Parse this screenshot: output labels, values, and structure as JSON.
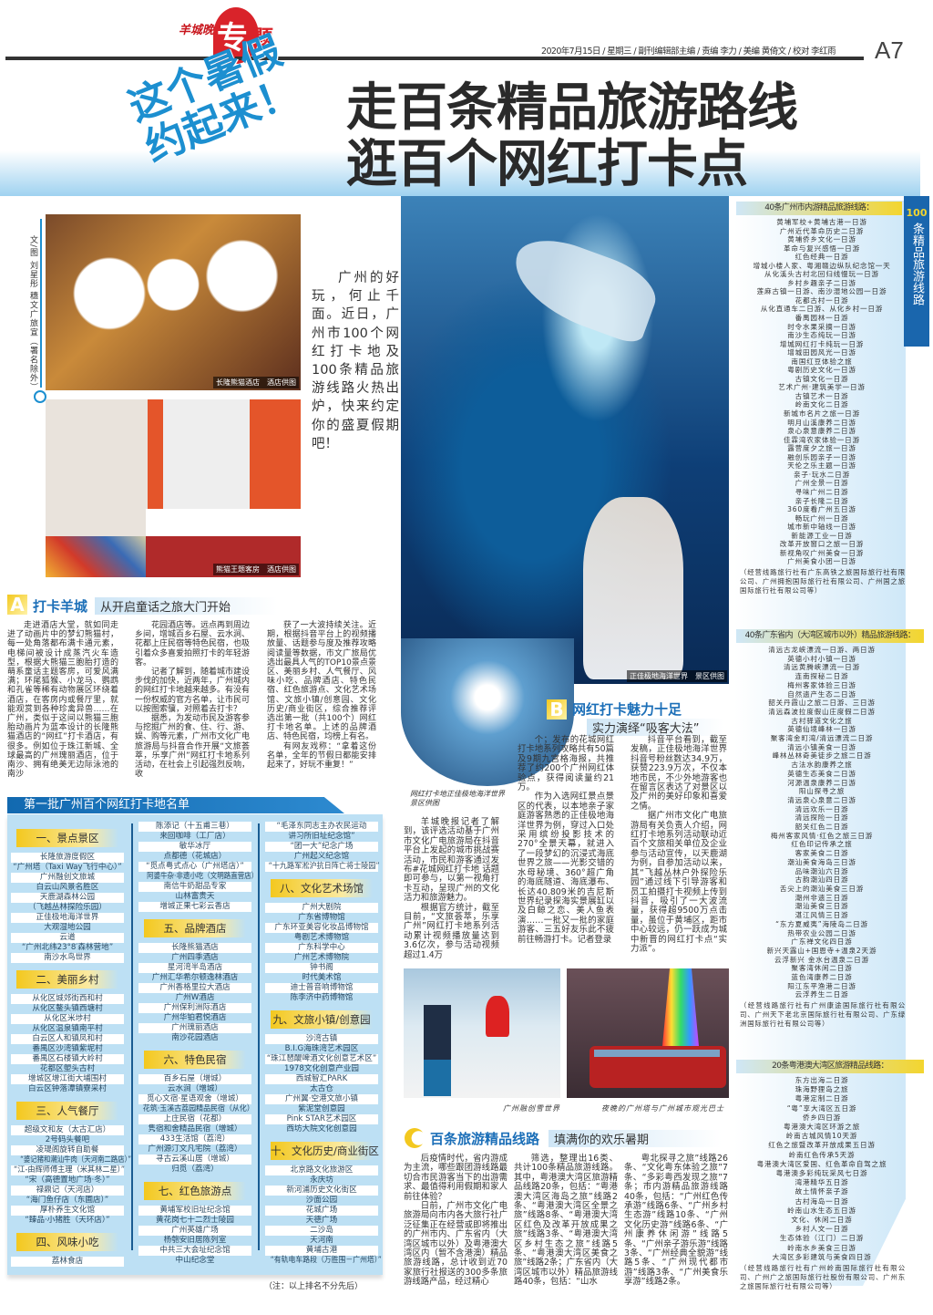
{
  "masthead": {
    "logo": "羊城晚报",
    "section_1": "专",
    "section_2": "题",
    "dateline": "2020年7月15日 / 星期三 / 副刊编辑部主编 / 责编 李力 / 美编 黄倚文 / 校对 李红雨",
    "page": "A7"
  },
  "headline": {
    "slogan": "这个暑假约起来！",
    "title_line1": "走百条精品旅游路线",
    "title_line2": "逛百个网红打卡点"
  },
  "byline": "文/图 刘星彤 穗文广旅宣（署名除外）",
  "intro": "广州的好玩，何止千面。近日，广州市100个网红打卡地及100条精品旅游线路火热出炉，快来约定你的盛夏假期吧！",
  "photos": {
    "panda_caption": "长隆熊猫酒店　酒店供图",
    "room_caption": "熊猫王题客房　酒店供图",
    "aquarium_caption": "正佳极地海洋世界　景区供图",
    "circle_caption": "网红打卡地正佳极地海洋世界　景区供图",
    "snow_caption": "广州融创雪世界",
    "bus_caption": "夜晚的广州塔与广州城市观光巴士"
  },
  "section_a": {
    "letter": "A",
    "title": "打卡羊城",
    "subtitle": "从开启童话之旅大门开始",
    "columns": [
      [
        "走进酒店大堂，就如同走进了动画片中的梦幻熊猫村，每一处角落都布满卡通元素，电梯间被设计成蒸汽火车造型，根据大熊猫三胞胎打造的萌系童话主题客房，可爱风满满；环尾狐猴、小龙马、鹦鹉和孔雀等稀有动物展区环绕着酒店，在客房内或餐厅里，就能观赏到各种珍禽异兽……在广州，类似于这间以熊猫三胞胎动画片为蓝本设计的长隆熊猫酒店的“网红”打卡酒店，有很多。例如位于珠江新城、全球最高的广州瑰丽酒店，位于南沙、拥有绝美无边际泳池的南沙"
      ],
      [
        "花园酒店等。远点再到周边乡间，增城百乡石屋、云水涧、花都上庄民宿等特色民宿，也吸引着众多喜爱拍照打卡的年轻游客。",
        "记者了解到，随着城市建设步伐的加快，近两年，广州城内的网红打卡地越来越多。有没有一份权威的官方名单，让市民可以按图索骥，对照着去打卡？",
        "据悉，为发动市民及游客参与挖掘广州的食、住、行、游、娱、购等元素，广州市文化广电旅游局与抖音合作开展“文旅荟萃，乐享广州”网红打卡地系列活动，在社会上引起强烈反响，收"
      ],
      [
        "获了一大波持续关注。近期，根据抖音平台上的视频播放量、话题参与度及推荐攻略阅读量等数据，市文广旅局优选出最具人气的TOP10景点景区、美丽乡村、人气餐厅、风味小吃、品牌酒店、特色民宿、红色旅游点、文化艺术场馆、文旅小镇/创意园、文化历史/商业街区，综合推荐评选出第一批（共100个）网红打卡地名单。上述的品牌酒店、特色民宿，均榜上有名。",
        "有网友戏称：“拿着这份名单，全年的节假日都能安排起来了，好玩不重复！”"
      ]
    ]
  },
  "section_b": {
    "letter": "B",
    "title": "网红打卡魅力十足",
    "subtitle": "实力演绎“吸客大法”",
    "columns": [
      [
        "羊城晚报记者了解到，该评选活动基于广州市文化广电旅游局在抖音平台上发起的城市挑战赛活动，市民和游客通过发布#花城网红打卡地 话题即可参与，以第一视角打卡互动，呈现广州的文化活力和旅游魅力。",
        "根据官方统计，截至目前，“文旅荟萃，乐享广州”网红打卡地系列活动累计视频播放量达到3.6亿次，参与活动视频超过1.4万"
      ],
      [
        "个；发布的花城网红打卡地系列攻略共有50篇及9期九宫格海报，共推荐了约200个广州网红体验点，获得阅读量约21万。",
        "作为入选网红景点景区的代表，以本地亲子家庭游客熟悉的正佳极地海洋世界为例，穿过入口处采用缤纷投影技术的270°全景天幕，就进入了一段梦幻的沉浸式海底世界之旅——光影交错的水母秘境、360°超广角的海底隧道、海底瀑布、长达40.809米的吉尼斯世界纪录探海实景展缸以及白鲸之恋、美人鱼表演……一批又一批的家庭游客、三五好友乐此不疲前往畅游打卡。记者登录"
      ],
      [
        "抖音平台看到，截至发稿，正佳极地海洋世界抖音号粉丝数达34.9万，获赞223.9万次，不仅本地市民，不少外地游客也在留言区表达了对景区以及广州的美好印象和喜爱之情。",
        "据广州市文化广电旅游局有关负责人介绍，网红打卡地系列活动联动近百个文旅相关单位及企业参与活动宣传，以天鹿湖为例，自参加活动以来，其“飞越丛林户外探险乐园”通过线下引导游客和员工拍摄打卡视频上传到抖音，吸引了一大波流量，获得超9500万点击量，虽位于黄埔区，距市中心较远，仍一跃成为城中新晋的网红打卡点“实力派”。"
      ]
    ]
  },
  "section_c": {
    "letter": "C",
    "title": "百条旅游精品线路",
    "subtitle": "填满你的欢乐暑期",
    "columns": [
      [
        "后疫情时代，省内游成为主流，哪些跟团游线路最切合市民游客当下的出游需求、最值得利用假期和家人前往体验？",
        "日前，广州市文化广电旅游局向市内各大旅行社广泛征集正在经营或即将推出的广州市内、广东省内（大湾区城市以外）及粤港澳大湾区内（暂不含港澳）精品旅游线路，总计收到近70家旅行社报送的300多条旅游线路产品，经过精心"
      ],
      [
        "筛选，整理出16类、共计100条精品旅游线路。其中，粤港澳大湾区旅游精品线路20条，包括：“粤港澳大湾区海岛之旅”线路2条、“粤港澳大湾区全景之旅”线路8条、“粤港澳大湾区红色及改革开放成果之旅”线路3条、“粤港澳大湾区乡村生态之旅”线路5条、“粤港澳大湾区美食之旅”线路2条；广东省内（大湾区城市以外）精品旅游线路40条，包括：“山水"
      ],
      [
        "粤北探寻之旅”线路26条、“文化粤东体验之旅”7条、“多彩粤西发现之旅”7条；市内游精品旅游线路40条，包括：“广州红色传承游”线路6条、“广州乡村生态游”线路10条、“广州文化历史游”线路6条、“广州康养休闲游”线路5条、“广州亲子游乐游”线路3条、“广州经典全貌游”线路5条、“广州现代都市游”线路3条、“广州美食乐享游”线路2条。"
      ]
    ]
  },
  "checkin_list": {
    "title": "第一批广州百个网红打卡地名单",
    "note": "（注：以上排名不分先后）",
    "columns": [
      [
        {
          "heading": "一、景点景区",
          "items": [
            "长隆旅游度假区",
            "“广州塔（Taxi Way飞行中心）”",
            "广州融创文旅城",
            "白云山风景名胜区",
            "天鹿湖森林公园",
            "（飞越丛林探险乐园）",
            "正佳极地海洋世界",
            "大观湿地公园",
            "云道",
            "“广州北纬23°8′森林营地”",
            "南沙水鸟世界"
          ]
        },
        {
          "heading": "二、美丽乡村",
          "items": [
            "从化区城郊街西和村",
            "从化区鳌头镇西塘村",
            "从化区米埗村",
            "从化区温泉镇南平村",
            "白云区人和镇凤和村",
            "番禺区沙湾镇紫坭村",
            "番禺区石楼镇大岭村",
            "花都区塱头古村",
            "增城区增江街大埔围村",
            "白云区钟落潭镇寮采村"
          ]
        },
        {
          "heading": "三、人气餐厅",
          "items": [
            "超级文和友（太古汇店）",
            "2号码头餐吧",
            "凌瑅阁旋转自助餐",
            "“婆记猪和潮汕牛肉（天河南二路店）”",
            "“江-由辉师傅主理（米其林二星）”",
            "“宋（高德置地广场·冬）”",
            "禄鼎记（天河店）",
            "“海门鱼仔店（东圃店）”",
            "厚朴养生文化馆",
            "“臻品·小猪胜（天环店）”"
          ]
        },
        {
          "heading": "四、风味小吃",
          "items": [
            "荔林食店"
          ]
        }
      ],
      [
        {
          "heading": "",
          "items": [
            "陈添记（十五甫三巷）",
            "来回咖啡（工厂店）",
            "敏华冰厅",
            "点都德（花城店）",
            "“觅点粤式点心（广州塔店）”",
            "阿婆牛杂·非遗小吃（文明路直营店）",
            "南信牛奶甜品专家",
            "山林富贵天",
            "增城正果七彩云香店"
          ]
        },
        {
          "heading": "五、品牌酒店",
          "items": [
            "长隆熊猫酒店",
            "广州四季酒店",
            "星河湾半岛酒店",
            "广州汇华希尔顿逸林酒店",
            "广州香格里拉大酒店",
            "广州W酒店",
            "广州保利洲际酒店",
            "广州华铂君悦酒店",
            "广州瑰丽酒店",
            "南沙花园酒店"
          ]
        },
        {
          "heading": "六、特色民宿",
          "items": [
            "百乡石屋（增城）",
            "云水涧（增城）",
            "觅心文宿·星语观舍（增城）",
            "花筑·玉溪古荔园精品民宿（从化）",
            "上庄民宿（花都）",
            "隽宿和舍精品民宿（增城）",
            "433生活馆（荔湾）",
            "广州源汀文凡宅院（荔湾）",
            "寻古云溪山居（增城）",
            "归觅（荔湾）"
          ]
        },
        {
          "heading": "七、红色旅游点",
          "items": [
            "黄埔军校旧址纪念馆",
            "黄花岗七十二烈士陵园",
            "广州英雄广场",
            "杨匏安旧居陈列室",
            "中共三大会址纪念馆",
            "中山纪念堂"
          ]
        }
      ],
      [
        {
          "heading": "",
          "items": [
            "“毛泽东同志主办农民运动",
            "讲习所旧址纪念馆”",
            "“团一大”纪念广场",
            "广州起义纪念馆",
            "“十九路军淞沪抗日阵亡将士陵园”"
          ]
        },
        {
          "heading": "八、文化艺术场馆",
          "items": [
            "广州大剧院",
            "广东省博物馆",
            "广东环亚美容化妆品博物馆",
            "粤剧艺术博物馆",
            "广东科学中心",
            "广州艺术博物院",
            "钟书阁",
            "时代美术馆",
            "迪士普音响博物馆",
            "陈李济中药博物馆"
          ]
        },
        {
          "heading": "九、文旅小镇/创意园",
          "items": [
            "沙湾古镇",
            "B.I.G海珠湾艺术园区",
            "“珠江琶醍啤酒文化创意艺术区”",
            "1978文化创意产业园",
            "西城智汇PARK",
            "太古仓",
            "广州翼·空港文旅小镇",
            "紫泥堂创意园",
            "Pink STAR艺术园区",
            "西坊大院文化创意园"
          ]
        },
        {
          "heading": "十、文化历史/商业街区",
          "items": [
            "北京路文化旅游区",
            "永庆坊",
            "新河浦历史文化街区",
            "沙面公园",
            "花城广场",
            "天德广场",
            "二沙岛",
            "天河南",
            "黄埔古港",
            "“有轨电车路段（万胜围－广州塔）”"
          ]
        }
      ]
    ]
  },
  "routes": {
    "tab_number": "100",
    "tab_label": "条精品旅游线路",
    "groups": [
      {
        "heading": "40条广州市内游精品旅游线路：",
        "items": [
          "黄埔军校+黄埔古港一日游",
          "广州近代革命历史二日游",
          "黄埔侨乡文化一日游",
          "革命与复兴感悟一日游",
          "红色经典一日游",
          "增城小楼人家、粤湘赣边纵队纪念馆一天",
          "从化溪头古村北回归线慢玩一日游",
          "乡村乡趣亲子二日游",
          "莲麻古镇一日游、南沙湿地公园一日游",
          "花都古村一日游",
          "从化直通车二日游、从化乡村一日游",
          "番禺园林一日游",
          "时令水果采摘一日游",
          "南沙生态纯玩一日游",
          "增城网红打卡纯玩一日游",
          "增城田园风光一日游",
          "南国红豆体验之旅",
          "粤剧历史文化一日游",
          "古镇文化一日游",
          "艺术广州·建筑美学一日游",
          "古镇艺术一日游",
          "岭南文化二日游",
          "新城市名片之旅一日游",
          "明月山溪康养二日游",
          "泉心泉意康养二日游",
          "佳霖湾农家体验一日游",
          "露营度夕之旅一日游",
          "融创乐园亲子一日游",
          "天伦之乐主题一日游",
          "亲子·玩水二日游",
          "广州全景一日游",
          "寻味广州二日游",
          "亲子长隆二日游",
          "360度看广州五日游",
          "畅玩广州一日游",
          "城市新中轴线一日游",
          "新能源工业一日游",
          "改革开放窗口之旅一日游",
          "新视角叹广州美食一日游",
          "广州美食小团一日游"
        ],
        "note": "（经营线路旅行社有广东高铁之旅国际旅行社有限公司、广州拥抱国际旅行社有限公司、广州国之旅国际旅行社有限公司等）"
      },
      {
        "heading": "40条广东省内（大湾区城市以外）精品旅游线路：",
        "items": [
          "清远古龙峡漂流一日游、两日游",
          "英德小村小镇一日游",
          "清远黄腾峡漂流一日游",
          "连南探秘二日游",
          "梅州客家体验三日游",
          "自然遗产生态二日游",
          "韶关丹霞山之旅二日游、三日游",
          "清远森波拉度假山庄度假二日游",
          "古村驿道文化之旅",
          "英德仙境峰林一日游",
          "聚客湾金町湾/清远漂流二日游",
          "清远小镇美食一日游",
          "峰林丛林奇美徒步之旅二日游",
          "古法水韵康养之旅",
          "英德生态美食二日游",
          "河源温泉康养二日游",
          "阳山探寻之旅",
          "清远泉心泉意二日游",
          "清远欢乐一日游",
          "清远探险一日游",
          "韶关红色二日游",
          "梅州客家风情·红色之旅三日游",
          "红色印记传承之旅",
          "客家美食二日游",
          "潮汕美食海岛三日游",
          "品味潮汕六日游",
          "古韵潮汕四日游",
          "舌尖上的潮汕美食三日游",
          "潮州非遗三日游",
          "潮汕美食三日游",
          "湛江风情三日游",
          "“东方夏威夷”海陵岛二日游",
          "热带农业公园二日游",
          "广东禅文化四日游",
          "新兴天露山+国恩寺+温泉2天游",
          "云浮新兴 金水台温泉二日游",
          "聚客湾休闲二日游",
          "蓝色湾康养二日游",
          "阳江东平渔港二日游",
          "云浮养生二日游"
        ],
        "note": "（经营线路旅行社有广州康途国际旅行社有限公司、广州天下老北京国际旅行社有限公司、广东绿洲国际旅行社有限公司等）"
      },
      {
        "heading": "20条粤港澳大湾区旅游精品线路：",
        "items": [
          "东方出海二日游",
          "珠海野狸岛之旅",
          "粤港定制二日游",
          "“粤”享大湾区五日游",
          "侨乡四日游",
          "粤港澳大湾区环游之旅",
          "岭南古城风情10天游",
          "红色之旅暨改革开放成果五日游",
          "岭南红色传承5天游",
          "粤港澳大湾区爱国、红色革命自驾之旅",
          "粤港澳多彩纯玩采风七日游",
          "湾港精华五日游",
          "故土情怀亲子游",
          "古村海岛一日游",
          "岭南山水生态五日游",
          "文化、休闲二日游",
          "乡村人文一日游",
          "生态体验（江门）二日游",
          "岭南水乡美食三日游",
          "大湾区多彩建筑与美食四日游"
        ],
        "note": "（经营线路旅行社有广州岭南国际旅行社有限公司、广州广之旅国际旅行社股份有限公司、广州东之旅国际旅行社有限公司等）"
      }
    ]
  },
  "colors": {
    "brand_red": "#d9232a",
    "accent_blue": "#1c8fd0",
    "list_bg": "#bde0f4",
    "heading_yellow": "#f3c81f"
  }
}
